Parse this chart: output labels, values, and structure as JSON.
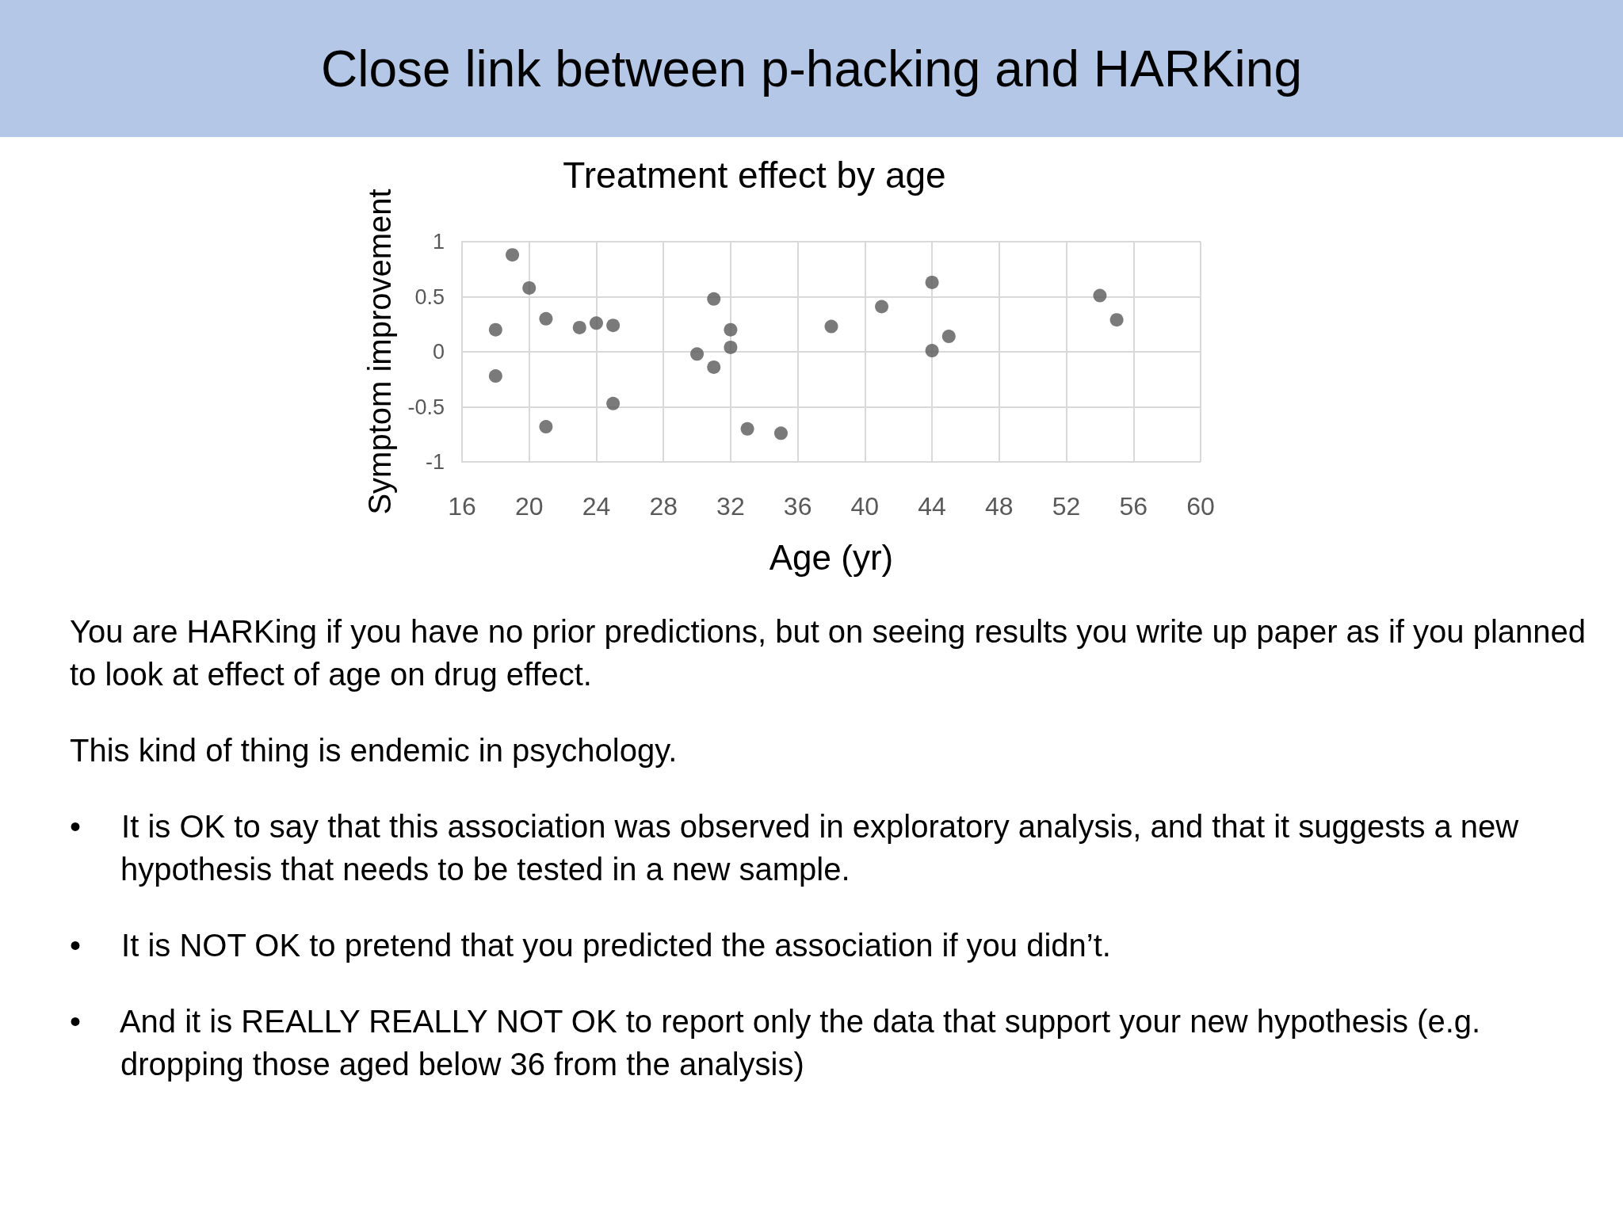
{
  "chart_data": {
    "type": "scatter",
    "title": "Close link between p-hacking and HARKing",
    "subtitle": "Treatment effect by age",
    "xlabel": "Age (yr)",
    "ylabel": "Symptom improvement",
    "series": [
      {
        "color": "#595959",
        "x": [
          19,
          20,
          18,
          18,
          21,
          23,
          24,
          25,
          25,
          21,
          31,
          32,
          32,
          30,
          31,
          33,
          35,
          38,
          41,
          44,
          44,
          45,
          54,
          55
        ],
        "values": [
          0.88,
          0.58,
          0.2,
          -0.22,
          0.3,
          0.22,
          0.26,
          0.24,
          -0.47,
          -0.68,
          0.48,
          0.2,
          0.04,
          -0.02,
          -0.14,
          -0.7,
          -0.74,
          0.23,
          0.41,
          0.63,
          0.01,
          0.14,
          0.51,
          0.29
        ]
      }
    ],
    "xlim": [
      16,
      60
    ],
    "xticks": [
      16,
      20,
      24,
      28,
      32,
      36,
      40,
      44,
      48,
      52,
      56,
      60
    ],
    "ylim": [
      -1,
      1
    ],
    "yticks": [
      -1,
      -0.5,
      0,
      0.5,
      1
    ],
    "grid": true,
    "marker": "circle",
    "annotations": [
      "You are HARKing if you have no prior predictions, but on seeing results you write up paper as if you planned to look at effect of age on drug effect.",
      "This kind of thing is endemic in psychology.",
      "• It is OK to say that this association was observed in exploratory analysis, and that it suggests a new hypothesis that needs to be tested in a new sample.",
      "• It is NOT OK to pretend that you predicted the association if you didn’t.",
      "• And it is REALLY REALLY NOT OK to report only the data that support your new hypothesis (e.g. dropping those aged below 36 from the analysis)"
    ]
  }
}
